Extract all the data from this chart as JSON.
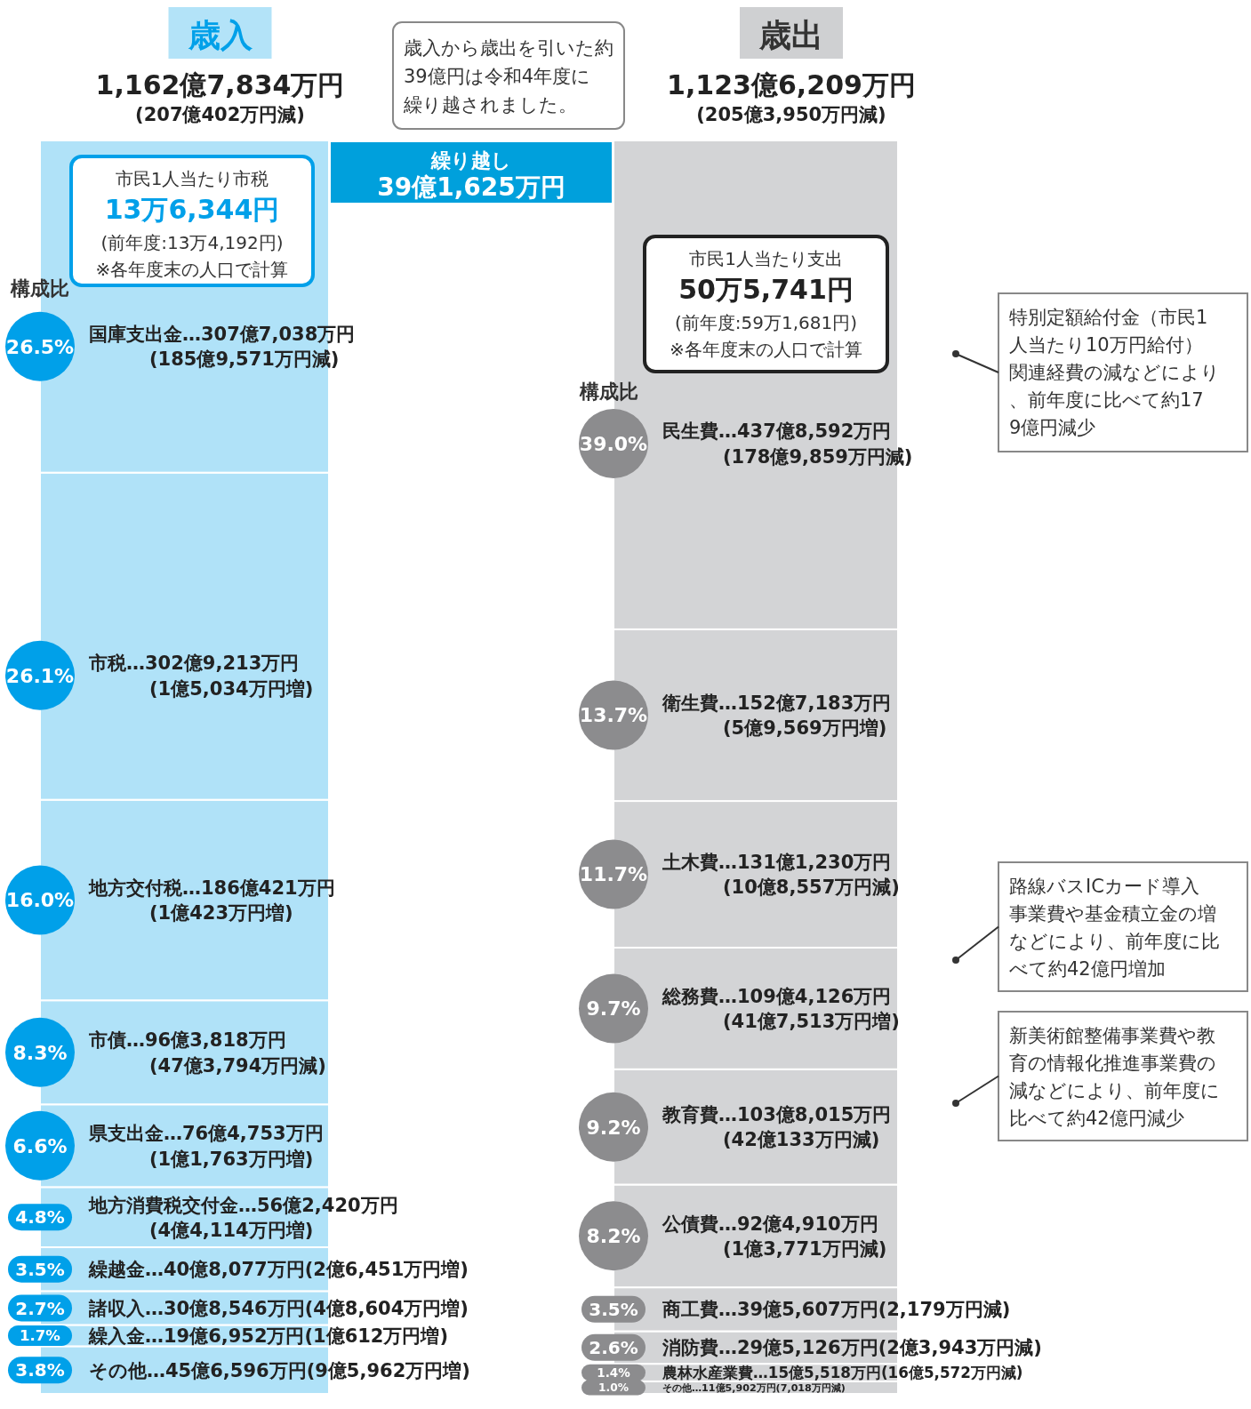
{
  "chart_data": {
    "type": "bar",
    "stacked": true,
    "categories": [
      "歳入",
      "歳出"
    ],
    "totals": [
      "1,162億7,834万円\n(207億402万円減)",
      "1,123億6,209万円\n(205億3,950万円減)"
    ],
    "series": [
      {
        "name": "その他…45億6,596万円(9億5,962万円増)",
        "color": "#b0e2f8",
        "values": [
          3.8,
          null
        ],
        "value_labels": [
          "3.8%",
          null
        ]
      },
      {
        "name": "繰入金…19億6,952万円(1億612万円増)",
        "color": "#b0e2f8",
        "values": [
          1.7,
          null
        ],
        "value_labels": [
          "1.7%",
          null
        ]
      },
      {
        "name": "諸収入…30億8,546万円(4億8,604万円増)",
        "color": "#b0e2f8",
        "values": [
          2.7,
          null
        ],
        "value_labels": [
          "2.7%",
          null
        ]
      },
      {
        "name": "繰越金…40億8,077万円(2億6,451万円増)",
        "color": "#b0e2f8",
        "values": [
          3.5,
          null
        ],
        "value_labels": [
          "3.5%",
          null
        ]
      },
      {
        "name": "地方消費税交付金…56億2,420万円\n(4億4,114万円増)",
        "color": "#b0e2f8",
        "values": [
          4.8,
          null
        ],
        "value_labels": [
          "4.8%",
          null
        ]
      },
      {
        "name": "県支出金…76億4,753万円\n(1億1,763万円増)",
        "color": "#b0e2f8",
        "values": [
          6.6,
          null
        ],
        "value_labels": [
          "6.6%",
          null
        ]
      },
      {
        "name": "市債…96億3,818万円\n(47億3,794万円減)",
        "color": "#b0e2f8",
        "values": [
          8.3,
          null
        ],
        "value_labels": [
          "8.3%",
          null
        ]
      },
      {
        "name": "地方交付税…186億421万円\n(1億423万円増)",
        "color": "#b0e2f8",
        "values": [
          16.0,
          null
        ],
        "value_labels": [
          "16.0%",
          null
        ]
      },
      {
        "name": "市税…302億9,213万円\n(1億5,034万円増)",
        "color": "#b0e2f8",
        "values": [
          26.1,
          null
        ],
        "value_labels": [
          "26.1%",
          null
        ]
      },
      {
        "name": "国庫支出金…307億7,038万円\n(185億9,571万円減)",
        "color": "#b0e2f8",
        "values": [
          26.5,
          null
        ],
        "value_labels": [
          "26.5%",
          null
        ]
      },
      {
        "name": "その他…11億5,902万円(7,018万円減)",
        "color": "#d3d4d6",
        "values": [
          null,
          1.0
        ],
        "value_labels": [
          null,
          "1.0%"
        ]
      },
      {
        "name": "農林水産業費…15億5,518万円(16億5,572万円減)",
        "color": "#d3d4d6",
        "values": [
          null,
          1.4
        ],
        "value_labels": [
          null,
          "1.4%"
        ]
      },
      {
        "name": "消防費…29億5,126万円(2億3,943万円減)",
        "color": "#d3d4d6",
        "values": [
          null,
          2.6
        ],
        "value_labels": [
          null,
          "2.6%"
        ]
      },
      {
        "name": "商工費…39億5,607万円(2,179万円減)",
        "color": "#d3d4d6",
        "values": [
          null,
          3.5
        ],
        "value_labels": [
          null,
          "3.5%"
        ]
      },
      {
        "name": "公債費…92億4,910万円\n(1億3,771万円減)",
        "color": "#d3d4d6",
        "values": [
          null,
          8.2
        ],
        "value_labels": [
          null,
          "8.2%"
        ]
      },
      {
        "name": "教育費…103億8,015万円\n(42億133万円減)",
        "color": "#d3d4d6",
        "values": [
          null,
          9.2
        ],
        "value_labels": [
          null,
          "9.2%"
        ]
      },
      {
        "name": "総務費…109億4,126万円\n(41億7,513万円増)",
        "color": "#d3d4d6",
        "values": [
          null,
          9.7
        ],
        "value_labels": [
          null,
          "9.7%"
        ]
      },
      {
        "name": "土木費…131億1,230万円\n(10億8,557万円減)",
        "color": "#d3d4d6",
        "values": [
          null,
          11.7
        ],
        "value_labels": [
          null,
          "11.7%"
        ]
      },
      {
        "name": "衛生費…152億7,183万円\n(5億9,569万円増)",
        "color": "#d3d4d6",
        "values": [
          null,
          13.7
        ],
        "value_labels": [
          null,
          "13.7%"
        ]
      },
      {
        "name": "民生費…437億8,592万円\n(178億9,859万円減)",
        "color": "#d3d4d6",
        "values": [
          null,
          39.0
        ],
        "value_labels": [
          null,
          "39.0%"
        ]
      }
    ],
    "annotations": [
      "構成比",
      "市民1人当たり市税\n13万6,344円\n(前年度:13万4,192円)\n※各年度末の人口で計算",
      "構成比",
      "市民1人当たり支出\n50万5,741円\n(前年度:59万1,681円)\n※各年度末の人口で計算",
      "歳入から歳出を引いた約39億円は令和4年度に繰り越されました。",
      "特別定額給付金（市民1人当たり10万円給付）関連経費の減などにより、前年度に比べて約179億円減少",
      "路線バスICカード導入事業費や基金積立金の増などにより、前年度に比べて約42億円増加",
      "新美術館整備事業費や教育の情報化推進事業費の減などにより、前年度に比べて約42億円減少",
      "繰り越し\n39億1,625万円"
    ]
  }
}
